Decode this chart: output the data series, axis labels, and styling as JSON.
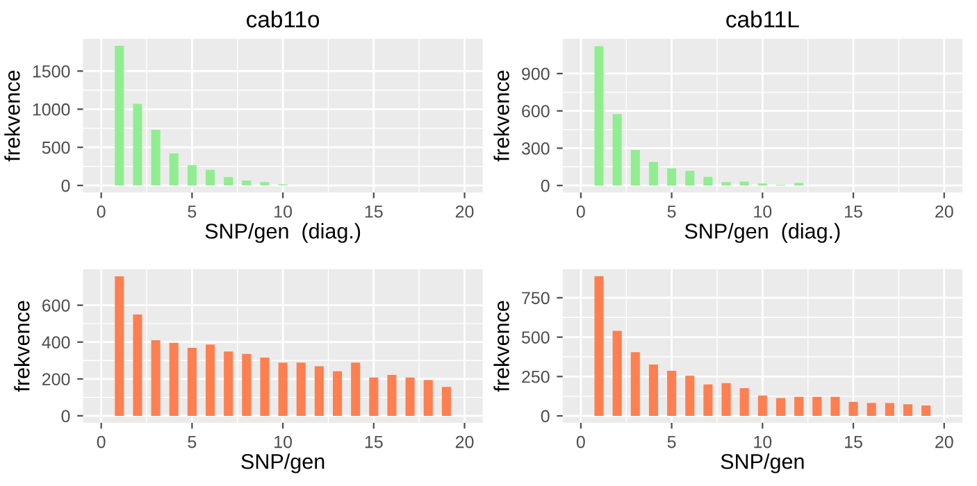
{
  "chart_data": [
    {
      "type": "bar",
      "title": "cab11o",
      "xlabel": "SNP/gen  (diag.)",
      "ylabel": "frekvence",
      "x": [
        1,
        2,
        3,
        4,
        5,
        6,
        7,
        8,
        9,
        10
      ],
      "values": [
        1830,
        1070,
        730,
        420,
        265,
        205,
        110,
        65,
        45,
        15
      ],
      "color": "#90ee90",
      "xlim": [
        -1,
        21
      ],
      "xticks": [
        0,
        5,
        10,
        15,
        20
      ],
      "ylim": [
        -92,
        1922
      ],
      "yticks": [
        0,
        500,
        1000,
        1500
      ],
      "grid": true
    },
    {
      "type": "bar",
      "title": "cab11L",
      "xlabel": "SNP/gen  (diag.)",
      "ylabel": "frekvence",
      "x": [
        1,
        2,
        3,
        4,
        5,
        6,
        7,
        8,
        9,
        10,
        11,
        12
      ],
      "values": [
        1120,
        575,
        285,
        190,
        138,
        118,
        69,
        28,
        32,
        16,
        5,
        20
      ],
      "color": "#90ee90",
      "xlim": [
        -1,
        21
      ],
      "xticks": [
        0,
        5,
        10,
        15,
        20
      ],
      "ylim": [
        -56,
        1179
      ],
      "yticks": [
        0,
        300,
        600,
        900
      ],
      "grid": true
    },
    {
      "type": "bar",
      "xlabel": "SNP/gen",
      "ylabel": "frekvence",
      "x": [
        1,
        2,
        3,
        4,
        5,
        6,
        7,
        8,
        9,
        10,
        11,
        12,
        13,
        14,
        15,
        16,
        17,
        18,
        19
      ],
      "values": [
        757,
        549,
        410,
        396,
        369,
        387,
        349,
        336,
        316,
        289,
        289,
        269,
        242,
        289,
        208,
        222,
        208,
        195,
        157
      ],
      "color": "#ff7f50",
      "xlim": [
        -1,
        21
      ],
      "xticks": [
        0,
        5,
        10,
        15,
        20
      ],
      "ylim": [
        -38,
        795
      ],
      "yticks": [
        0,
        200,
        400,
        600
      ],
      "grid": true
    },
    {
      "type": "bar",
      "xlabel": "SNP/gen",
      "ylabel": "frekvence",
      "x": [
        1,
        2,
        3,
        4,
        5,
        6,
        7,
        8,
        9,
        10,
        11,
        12,
        13,
        14,
        15,
        16,
        17,
        18,
        19
      ],
      "values": [
        887,
        540,
        405,
        326,
        287,
        255,
        200,
        208,
        176,
        129,
        113,
        121,
        121,
        121,
        89,
        82,
        82,
        74,
        66
      ],
      "color": "#ff7f50",
      "xlim": [
        -1,
        21
      ],
      "xticks": [
        0,
        5,
        10,
        15,
        20
      ],
      "ylim": [
        -44,
        931
      ],
      "yticks": [
        0,
        250,
        500,
        750
      ],
      "grid": true
    }
  ]
}
